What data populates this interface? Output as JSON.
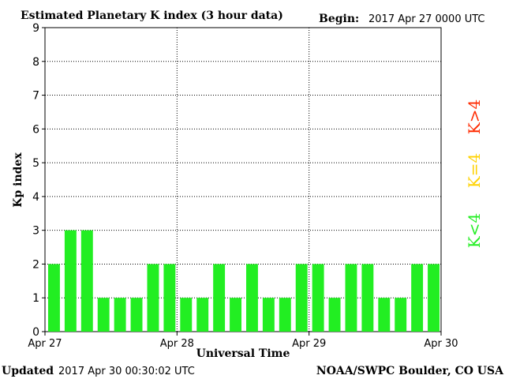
{
  "header": {
    "title": "Estimated Planetary K index (3 hour data)",
    "begin_label": "Begin:",
    "begin_value": "2017 Apr 27 0000 UTC"
  },
  "footer": {
    "updated_label": "Updated",
    "updated_value": "2017 Apr 30 00:30:02 UTC",
    "source": "NOAA/SWPC Boulder, CO USA"
  },
  "legend": {
    "high": {
      "text": "K>4",
      "color": "#ff2a00"
    },
    "mid": {
      "text": "K=4",
      "color": "#ffd200"
    },
    "low": {
      "text": "K<4",
      "color": "#22ee22"
    }
  },
  "chart_data": {
    "type": "bar",
    "title": "Estimated Planetary K index (3 hour data)",
    "xlabel": "Universal Time",
    "ylabel": "Kp index",
    "ylim": [
      0,
      9
    ],
    "yticks": [
      0,
      1,
      2,
      3,
      4,
      5,
      6,
      7,
      8,
      9
    ],
    "xticks": [
      "Apr 27",
      "Apr 28",
      "Apr 29",
      "Apr 30"
    ],
    "grid": true,
    "bar_color": "#22ee22",
    "values": [
      2,
      3,
      3,
      1,
      1,
      1,
      2,
      2,
      1,
      1,
      2,
      1,
      2,
      1,
      1,
      2,
      2,
      1,
      2,
      2,
      1,
      1,
      2,
      2
    ]
  }
}
